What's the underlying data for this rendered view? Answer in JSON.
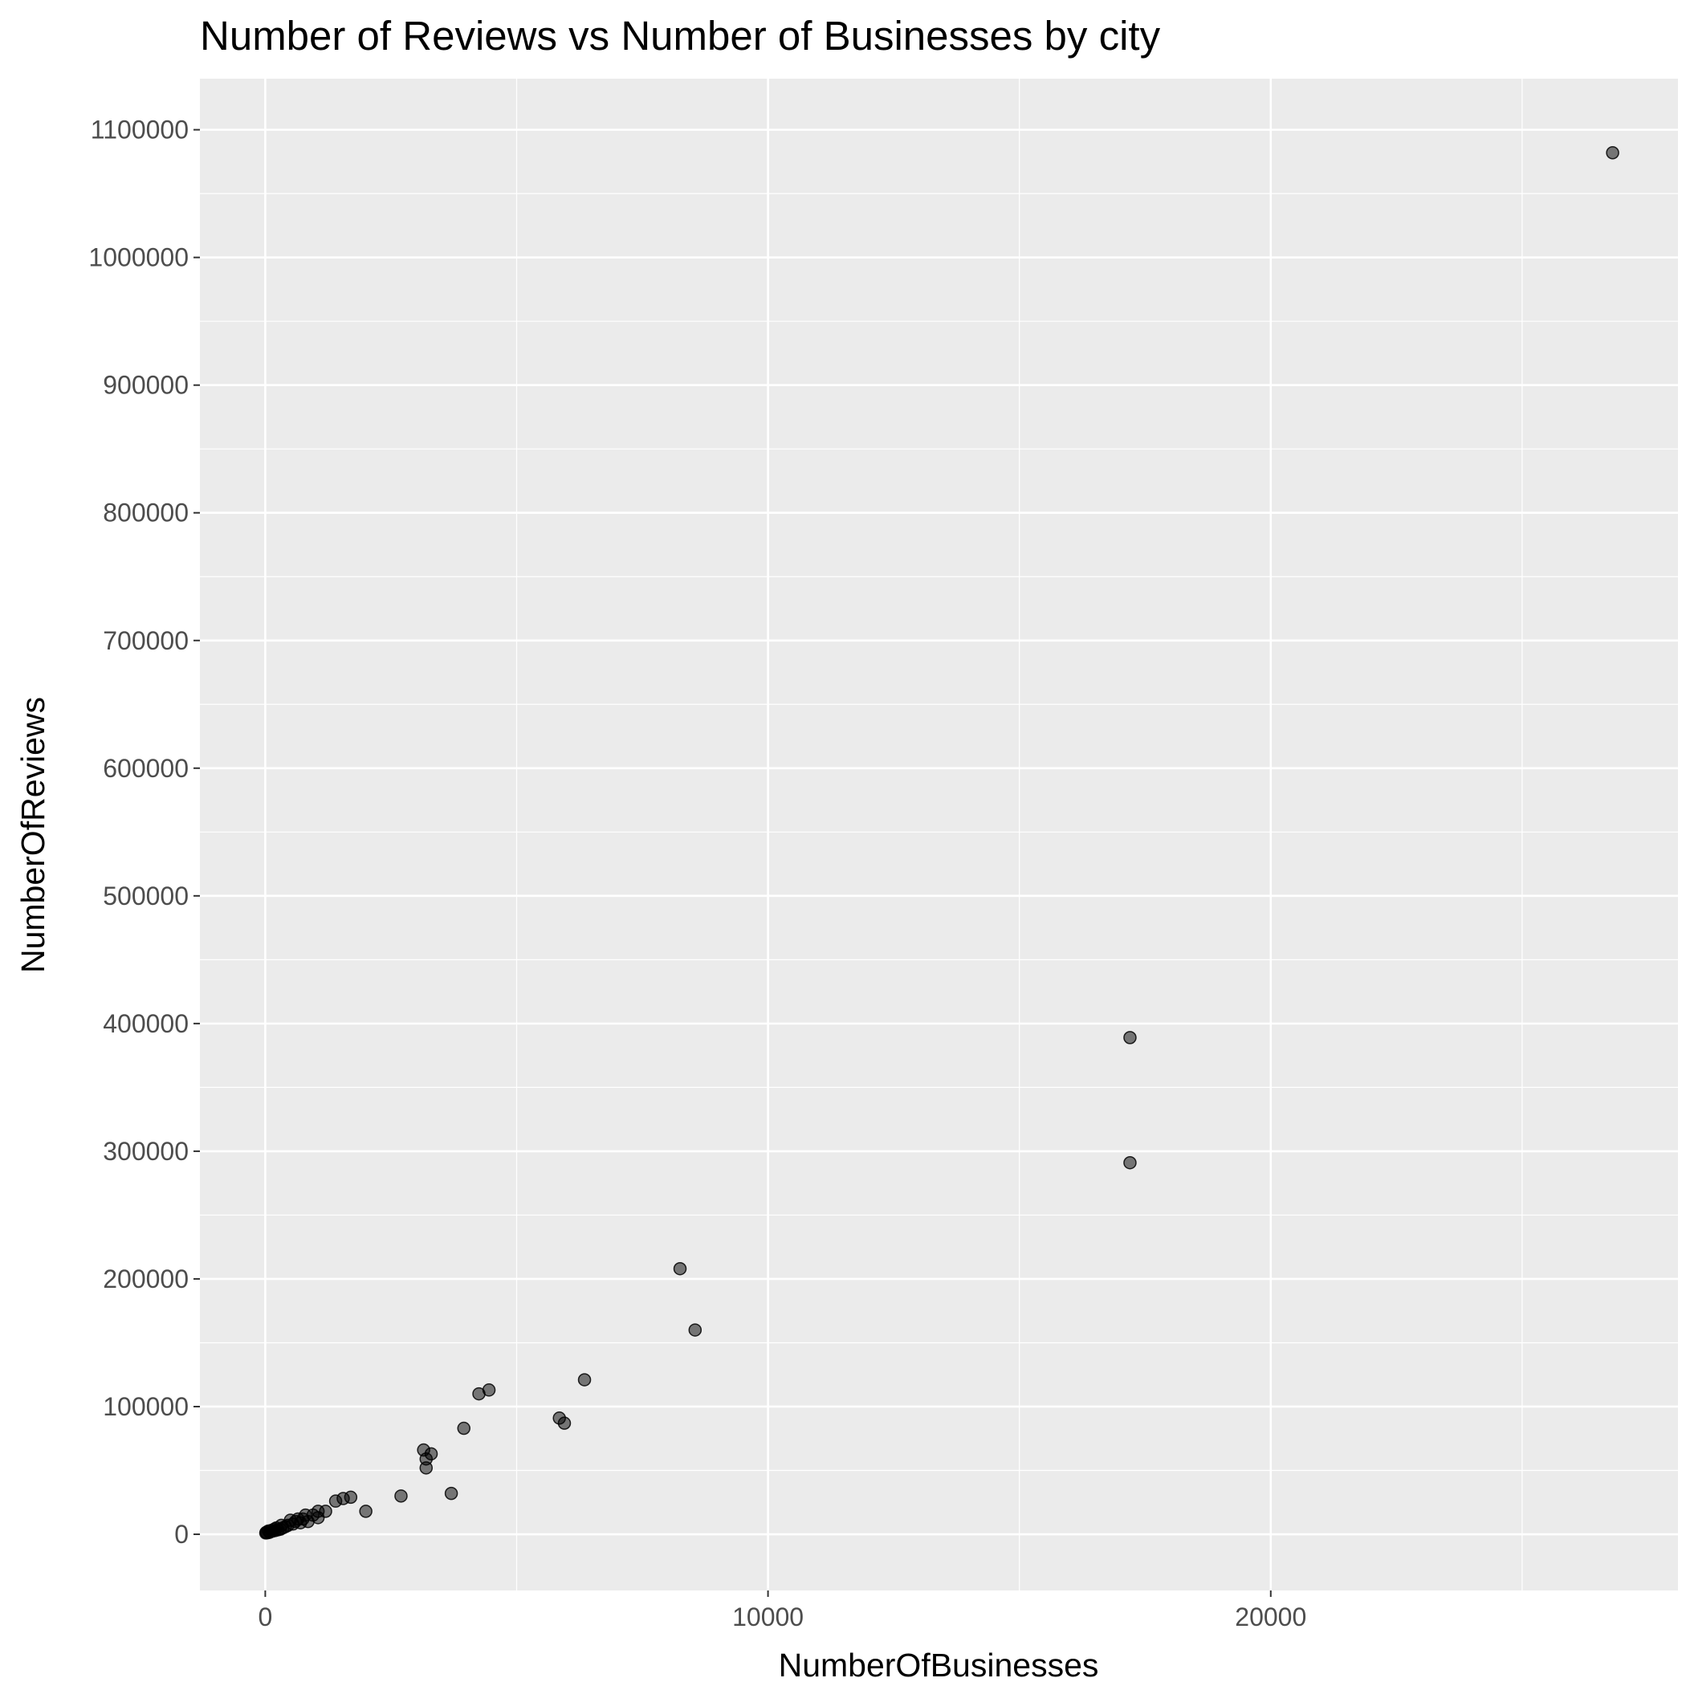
{
  "chart_data": {
    "type": "scatter",
    "title": "Number of Reviews vs Number of Businesses by city",
    "xlabel": "NumberOfBusinesses",
    "ylabel": "NumberOfReviews",
    "xlim": [
      -1300,
      28100
    ],
    "ylim": [
      -44000,
      1140000
    ],
    "x_ticks": [
      0,
      10000,
      20000
    ],
    "x_tick_labels": [
      "0",
      "10000",
      "20000"
    ],
    "y_ticks": [
      0,
      100000,
      200000,
      300000,
      400000,
      500000,
      600000,
      700000,
      800000,
      900000,
      1000000,
      1100000
    ],
    "y_tick_labels": [
      "0",
      "100000",
      "200000",
      "300000",
      "400000",
      "500000",
      "600000",
      "700000",
      "800000",
      "900000",
      "1000000",
      "1100000"
    ],
    "grid": true,
    "colors": {
      "panel": "#ebebeb",
      "grid": "#ffffff",
      "point_fill": "#000000",
      "tick_text": "#4d4d4d",
      "tick_mark": "#333333"
    },
    "points": [
      [
        26800,
        1082000
      ],
      [
        17200,
        389000
      ],
      [
        17200,
        291000
      ],
      [
        8250,
        208000
      ],
      [
        8550,
        160000
      ],
      [
        6350,
        121000
      ],
      [
        5850,
        91000
      ],
      [
        5950,
        87000
      ],
      [
        4450,
        113000
      ],
      [
        4250,
        110000
      ],
      [
        3950,
        83000
      ],
      [
        3150,
        66000
      ],
      [
        3300,
        63000
      ],
      [
        3200,
        59000
      ],
      [
        3200,
        52000
      ],
      [
        3700,
        32000
      ],
      [
        2700,
        30000
      ],
      [
        2000,
        18000
      ],
      [
        1700,
        29000
      ],
      [
        1550,
        28000
      ],
      [
        1400,
        26000
      ],
      [
        1200,
        18000
      ],
      [
        1050,
        18000
      ],
      [
        1050,
        13000
      ],
      [
        950,
        15000
      ],
      [
        850,
        10000
      ],
      [
        800,
        15000
      ],
      [
        750,
        12000
      ],
      [
        700,
        9000
      ],
      [
        650,
        12000
      ],
      [
        600,
        10000
      ],
      [
        550,
        8000
      ],
      [
        500,
        11000
      ],
      [
        450,
        7000
      ],
      [
        400,
        6000
      ],
      [
        350,
        5000
      ],
      [
        320,
        7000
      ],
      [
        300,
        4000
      ],
      [
        250,
        3500
      ],
      [
        220,
        5000
      ],
      [
        200,
        3000
      ],
      [
        180,
        4000
      ],
      [
        150,
        2500
      ],
      [
        120,
        3000
      ],
      [
        100,
        2000
      ],
      [
        80,
        1500
      ],
      [
        60,
        2500
      ],
      [
        40,
        1200
      ],
      [
        20,
        1500
      ],
      [
        10,
        1000
      ]
    ]
  }
}
